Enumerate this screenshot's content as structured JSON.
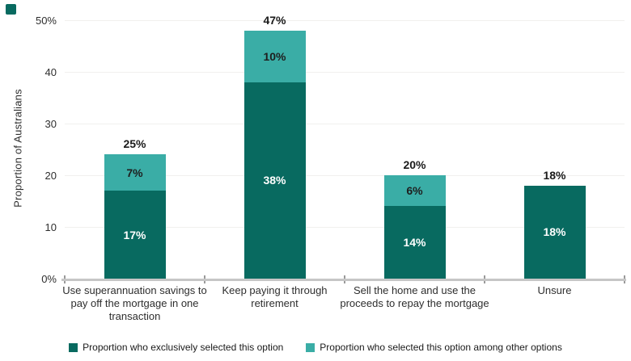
{
  "brand": {
    "corner_mark_color": "#086A60"
  },
  "chart_data": {
    "type": "bar",
    "stacked": true,
    "title": "",
    "ylabel": "Proportion of Australians",
    "xlabel": "",
    "ylim": [
      0,
      50
    ],
    "grid": "horizontal",
    "legend_position": "bottom",
    "yticks": [
      {
        "value": 0,
        "label": "0%"
      },
      {
        "value": 10,
        "label": "10"
      },
      {
        "value": 20,
        "label": "20"
      },
      {
        "value": 30,
        "label": "30"
      },
      {
        "value": 40,
        "label": "40"
      },
      {
        "value": 50,
        "label": "50%"
      }
    ],
    "categories": [
      "Use superannuation savings to pay off the mortgage in one transaction",
      "Keep paying it through retirement",
      "Sell the home and use the proceeds to repay the mortgage",
      "Unsure"
    ],
    "series": [
      {
        "name": "Proportion who exclusively selected this option",
        "color": "#086A60",
        "label_color": "#FFFFFF",
        "values": [
          17,
          38,
          14,
          18
        ],
        "labels": [
          "17%",
          "38%",
          "14%",
          "18%"
        ]
      },
      {
        "name": "Proportion who selected this option among other options",
        "color": "#3AADA6",
        "label_color": "#1E1E1E",
        "values": [
          7,
          10,
          6,
          0
        ],
        "labels": [
          "7%",
          "10%",
          "6%",
          ""
        ]
      }
    ],
    "totals": [
      {
        "label": "25%",
        "value": 25
      },
      {
        "label": "47%",
        "value": 47
      },
      {
        "label": "20%",
        "value": 20
      },
      {
        "label": "18%",
        "value": 18
      }
    ]
  }
}
